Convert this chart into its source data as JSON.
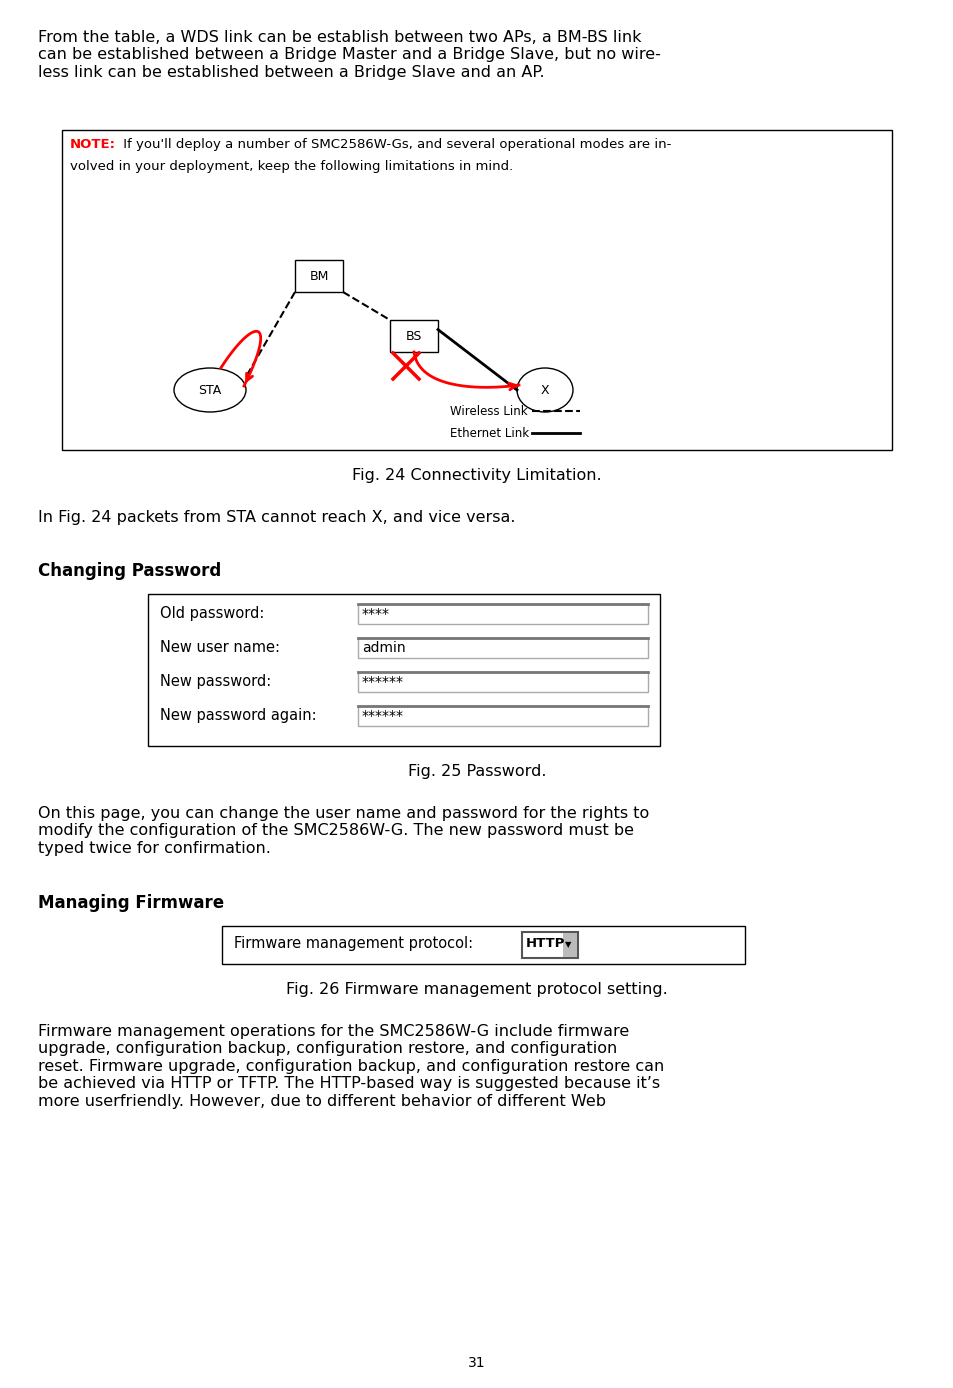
{
  "page_number": "31",
  "bg_color": "#ffffff",
  "para1": "From the table, a WDS link can be establish between two APs, a BM-BS link\ncan be established between a Bridge Master and a Bridge Slave, but no wire-\nless link can be established between a Bridge Slave and an AP.",
  "fig24_caption": "Fig. 24 Connectivity Limitation.",
  "fig25_caption": "Fig. 25 Password.",
  "fig26_caption": "Fig. 26 Firmware management protocol setting.",
  "para2": "In Fig. 24 packets from STA cannot reach X, and vice versa.",
  "heading1": "Changing Password",
  "heading2": "Managing Firmware",
  "para3": "On this page, you can change the user name and password for the rights to\nmodify the configuration of the SMC2586W-G. The new password must be\ntyped twice for confirmation.",
  "para4": "Firmware management operations for the SMC2586W-G include firmware\nupgrade, configuration backup, configuration restore, and configuration\nreset. Firmware upgrade, configuration backup, and configuration restore can\nbe achieved via HTTP or TFTP. The HTTP-based way is suggested because it’s\nmore userfriendly. However, due to different behavior of different Web",
  "password_labels": [
    "Old password:",
    "New user name:",
    "New password:",
    "New password again:"
  ],
  "password_values": [
    "****",
    "admin",
    "******",
    "******"
  ],
  "firmware_label": "Firmware management protocol:",
  "firmware_value": "HTTP",
  "note_line1": "NOTE:",
  "note_line1_rest": " If you'll deploy a number of SMC2586W-Gs, and several operational modes are in-",
  "note_line2": "volved in your deployment, keep the following limitations in mind."
}
